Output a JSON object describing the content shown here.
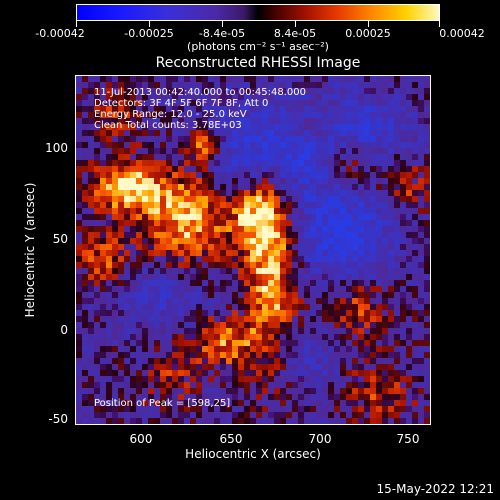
{
  "colorbar": {
    "tick_labels": [
      "-0.00042",
      "-0.00025",
      "-8.4e-05",
      "8.4e-05",
      "0.00025",
      "0.00042"
    ],
    "units_label": "(photons cm⁻² s⁻¹ asec⁻²)"
  },
  "plot": {
    "title": "Reconstructed RHESSI Image",
    "info_lines": [
      "11-Jul-2013 00:42:40.000 to 00:45:48.000",
      "Detectors: 3F 4F 5F 6F 7F 8F, Att 0",
      "Energy Range: 12.0 - 25.0 keV",
      "Clean     Total counts: 3.78E+03"
    ],
    "peak_label": "Position of Peak = [598,25]",
    "xlabel": "Heliocentric X (arcsec)",
    "ylabel": "Heliocentric Y (arcsec)",
    "x_ticks": [
      "600",
      "650",
      "700",
      "750"
    ],
    "y_ticks": [
      "100",
      "50",
      "0",
      "-50"
    ]
  },
  "timestamp": "15-May-2022 12:21",
  "colors": {
    "negative_extreme": "#0000ff",
    "zero": "#000000",
    "positive_extreme": "#fff8c0"
  }
}
